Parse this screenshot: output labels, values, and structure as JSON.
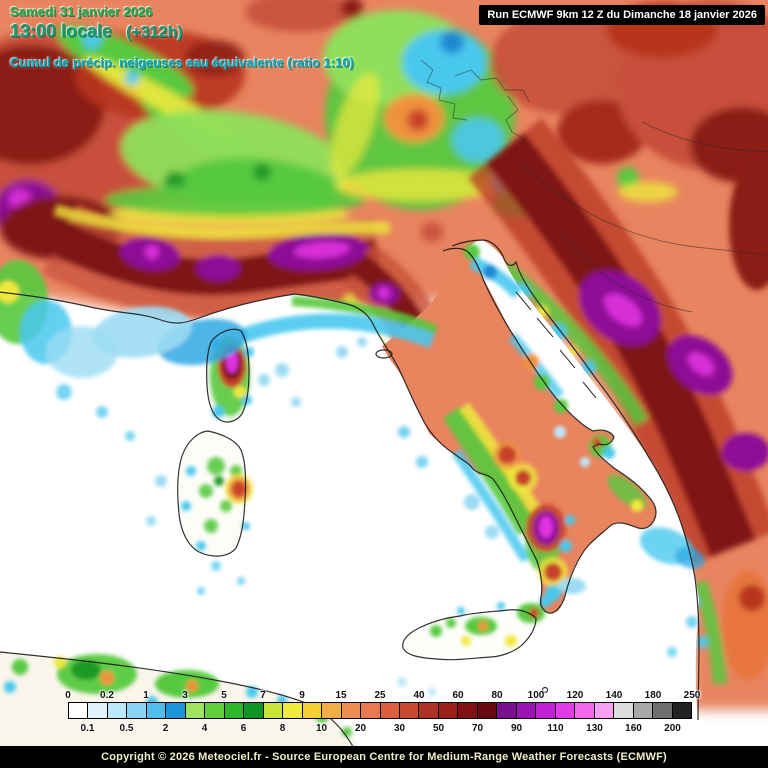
{
  "header": {
    "date_line": "Samedi 31 janvier 2026",
    "time_line": "13:00 locale",
    "time_offset": "(+312h)",
    "subtitle": "Cumul de précip. neigeuses eau équivalente (ratio 1:10)",
    "colors": {
      "date": "#22B14C",
      "time": "#0E9E6E",
      "subtitle": "#00AEBD"
    }
  },
  "run_box": {
    "text": "Run ECMWF 9km 12 Z du Dimanche 18 janvier 2026",
    "bg": "#000000",
    "fg": "#FFFFFF"
  },
  "map": {
    "description": "ECMWF 9km forecast map of accumulated snowfall (water equivalent, ratio 1:10) over Italy, the Alps, the Adriatic and the central Mediterranean",
    "region": "Italy / central Mediterranean"
  },
  "legend": {
    "boundaries": [
      0,
      0.1,
      0.2,
      0.5,
      1,
      2,
      3,
      4,
      5,
      6,
      7,
      8,
      9,
      10,
      15,
      20,
      25,
      30,
      40,
      50,
      60,
      70,
      80,
      90,
      100,
      110,
      120,
      130,
      140,
      160,
      180,
      200,
      250
    ],
    "top_labels": [
      "0",
      "0.2",
      "1",
      "3",
      "5",
      "7",
      "9",
      "15",
      "25",
      "40",
      "60",
      "80",
      "100",
      "120",
      "140",
      "180",
      "250"
    ],
    "bottom_labels": [
      "0.1",
      "0.5",
      "2",
      "4",
      "6",
      "8",
      "10",
      "20",
      "30",
      "50",
      "70",
      "90",
      "110",
      "130",
      "160",
      "200"
    ],
    "colors": [
      "#FFFFFF",
      "#DFF3FC",
      "#BBE7FA",
      "#8BD5F4",
      "#4FBEEC",
      "#1D95D9",
      "#9FE45F",
      "#62CE3A",
      "#2EB62A",
      "#119426",
      "#C9E436",
      "#EFEA3C",
      "#F4CF35",
      "#F2AE45",
      "#EE8E52",
      "#E87A52",
      "#DB5F3F",
      "#C94A32",
      "#B03226",
      "#9A1F1B",
      "#801012",
      "#690A12",
      "#7A0F8C",
      "#9C14B4",
      "#C11FD4",
      "#E23BE8",
      "#F468EE",
      "#F8A0F4",
      "#DCDCDC",
      "#A8A8A8",
      "#6E6E6E",
      "#222222"
    ]
  },
  "footer": {
    "copyright": "Copyright © 2026 Meteociel.fr - Source European Centre for Medium-Range Weather Forecasts (ECMWF)",
    "text_color": "#EFEFC8"
  }
}
